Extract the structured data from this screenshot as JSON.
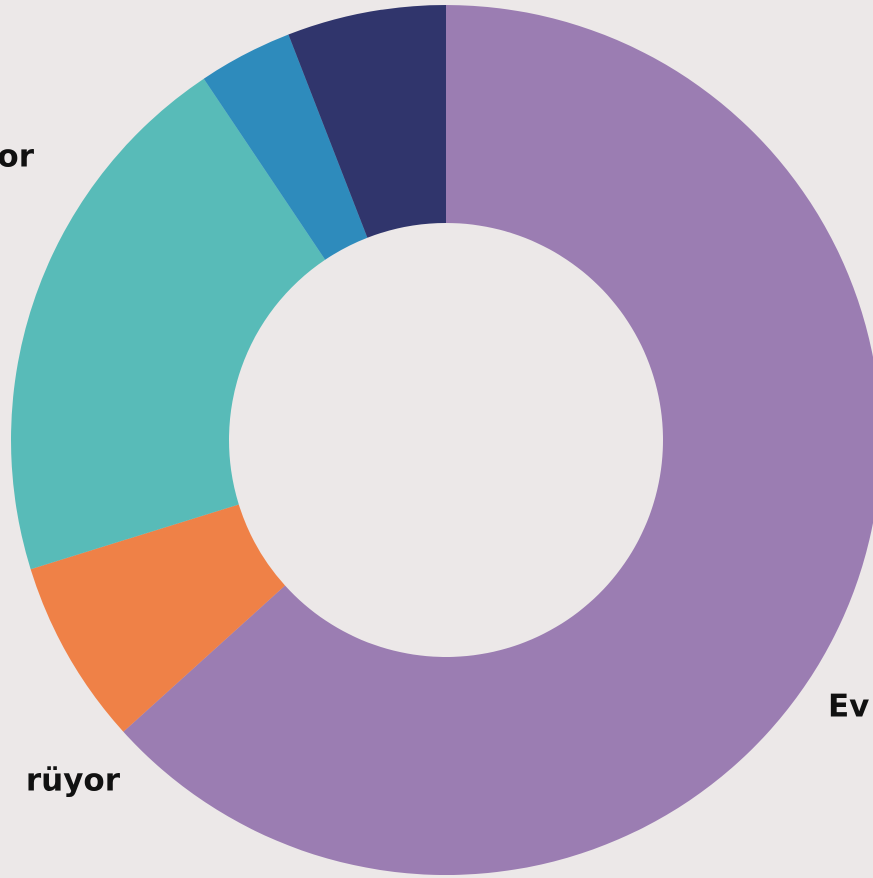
{
  "chart_data": {
    "type": "donut",
    "categories": [
      "Ev",
      "rüyor",
      "or",
      null,
      null
    ],
    "values": [
      63.3,
      6.9,
      20.4,
      3.5,
      5.9
    ],
    "colors": [
      "#9b7db2",
      "#ef8147",
      "#58bbb8",
      "#2e8bbc",
      "#30356c"
    ]
  }
}
